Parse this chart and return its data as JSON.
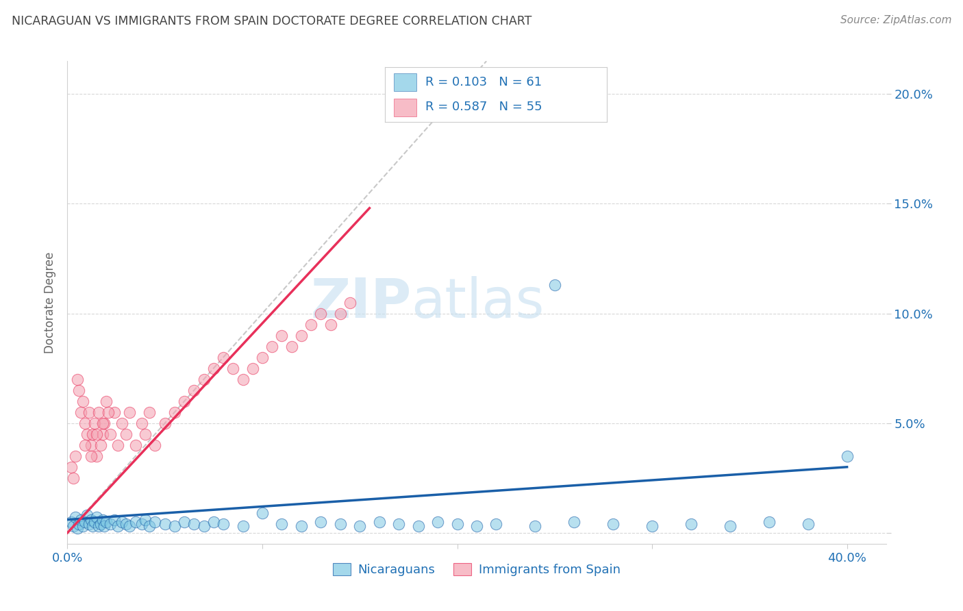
{
  "title": "NICARAGUAN VS IMMIGRANTS FROM SPAIN DOCTORATE DEGREE CORRELATION CHART",
  "source": "Source: ZipAtlas.com",
  "ylabel": "Doctorate Degree",
  "xlim": [
    0.0,
    0.42
  ],
  "ylim": [
    -0.005,
    0.215
  ],
  "yticks": [
    0.0,
    0.05,
    0.1,
    0.15,
    0.2
  ],
  "ytick_labels": [
    "",
    "5.0%",
    "10.0%",
    "15.0%",
    "20.0%"
  ],
  "xticks": [
    0.0,
    0.1,
    0.2,
    0.3,
    0.4
  ],
  "xtick_labels": [
    "0.0%",
    "",
    "",
    "",
    "40.0%"
  ],
  "watermark_zip": "ZIP",
  "watermark_atlas": "atlas",
  "legend_text1": "R = 0.103   N = 61",
  "legend_text2": "R = 0.587   N = 55",
  "blue_color": "#7ec8e3",
  "pink_color": "#f4a0b0",
  "blue_line_color": "#1a5fa8",
  "pink_line_color": "#e8305a",
  "diag_line_color": "#c8c8c8",
  "title_color": "#444444",
  "source_color": "#888888",
  "axis_color": "#2171b5",
  "background_color": "#ffffff",
  "blue_scatter_x": [
    0.002,
    0.003,
    0.004,
    0.005,
    0.006,
    0.007,
    0.008,
    0.009,
    0.01,
    0.011,
    0.012,
    0.013,
    0.014,
    0.015,
    0.016,
    0.017,
    0.018,
    0.019,
    0.02,
    0.022,
    0.024,
    0.026,
    0.028,
    0.03,
    0.032,
    0.035,
    0.038,
    0.04,
    0.042,
    0.045,
    0.05,
    0.055,
    0.06,
    0.065,
    0.07,
    0.075,
    0.08,
    0.09,
    0.1,
    0.11,
    0.12,
    0.13,
    0.14,
    0.15,
    0.16,
    0.17,
    0.18,
    0.19,
    0.2,
    0.21,
    0.22,
    0.24,
    0.26,
    0.28,
    0.3,
    0.32,
    0.34,
    0.36,
    0.38,
    0.4,
    0.25
  ],
  "blue_scatter_y": [
    0.005,
    0.003,
    0.007,
    0.002,
    0.004,
    0.006,
    0.003,
    0.005,
    0.008,
    0.004,
    0.006,
    0.003,
    0.005,
    0.007,
    0.003,
    0.004,
    0.006,
    0.003,
    0.005,
    0.004,
    0.006,
    0.003,
    0.005,
    0.004,
    0.003,
    0.005,
    0.004,
    0.006,
    0.003,
    0.005,
    0.004,
    0.003,
    0.005,
    0.004,
    0.003,
    0.005,
    0.004,
    0.003,
    0.009,
    0.004,
    0.003,
    0.005,
    0.004,
    0.003,
    0.005,
    0.004,
    0.003,
    0.005,
    0.004,
    0.003,
    0.004,
    0.003,
    0.005,
    0.004,
    0.003,
    0.004,
    0.003,
    0.005,
    0.004,
    0.035,
    0.113
  ],
  "pink_scatter_x": [
    0.002,
    0.003,
    0.004,
    0.005,
    0.006,
    0.007,
    0.008,
    0.009,
    0.01,
    0.011,
    0.012,
    0.013,
    0.014,
    0.015,
    0.016,
    0.017,
    0.018,
    0.019,
    0.02,
    0.022,
    0.024,
    0.026,
    0.028,
    0.03,
    0.032,
    0.035,
    0.038,
    0.04,
    0.042,
    0.045,
    0.05,
    0.055,
    0.06,
    0.065,
    0.07,
    0.075,
    0.08,
    0.085,
    0.09,
    0.095,
    0.1,
    0.105,
    0.11,
    0.115,
    0.12,
    0.125,
    0.13,
    0.135,
    0.14,
    0.145,
    0.009,
    0.012,
    0.015,
    0.018,
    0.021
  ],
  "pink_scatter_y": [
    0.03,
    0.025,
    0.035,
    0.07,
    0.065,
    0.055,
    0.06,
    0.05,
    0.045,
    0.055,
    0.04,
    0.045,
    0.05,
    0.035,
    0.055,
    0.04,
    0.045,
    0.05,
    0.06,
    0.045,
    0.055,
    0.04,
    0.05,
    0.045,
    0.055,
    0.04,
    0.05,
    0.045,
    0.055,
    0.04,
    0.05,
    0.055,
    0.06,
    0.065,
    0.07,
    0.075,
    0.08,
    0.075,
    0.07,
    0.075,
    0.08,
    0.085,
    0.09,
    0.085,
    0.09,
    0.095,
    0.1,
    0.095,
    0.1,
    0.105,
    0.04,
    0.035,
    0.045,
    0.05,
    0.055
  ],
  "blue_line_x": [
    0.0,
    0.4
  ],
  "blue_line_y": [
    0.006,
    0.03
  ],
  "pink_line_x": [
    0.0,
    0.155
  ],
  "pink_line_y": [
    0.0,
    0.148
  ],
  "diag_line_x": [
    0.0,
    0.215
  ],
  "diag_line_y": [
    0.0,
    0.215
  ]
}
